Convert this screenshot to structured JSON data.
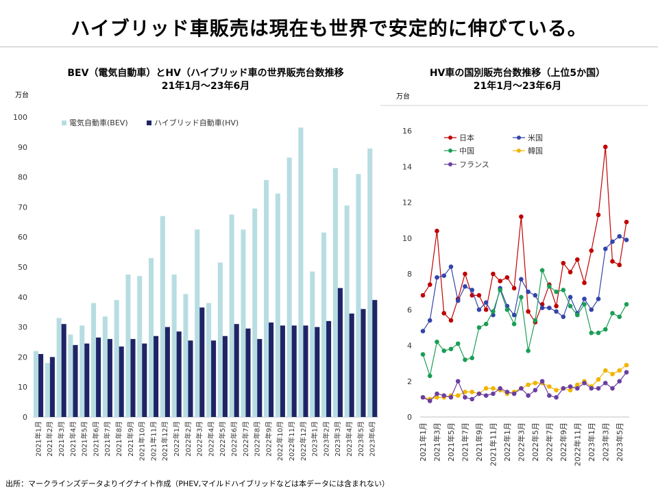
{
  "page": {
    "title": "ハイブリッド車販売は現在も世界で安定的に伸びている。",
    "source": "出所：マークラインズデータよりイグナイト作成（PHEV,マイルドハイブリッドなどは本データには含まれない）"
  },
  "chart_data": [
    {
      "type": "bar",
      "title": "BEV（電気自動車）とHV（ハイブリッド車の世界販売台数推移",
      "subtitle": "21年1月～23年6月",
      "unit": "万台",
      "ylim": [
        0,
        100
      ],
      "yticks": [
        0,
        10,
        20,
        30,
        40,
        50,
        60,
        70,
        80,
        90,
        100
      ],
      "categories": [
        "2021年1月",
        "2021年2月",
        "2021年3月",
        "2021年4月",
        "2021年5月",
        "2021年6月",
        "2021年7月",
        "2021年8月",
        "2021年9月",
        "2021年10月",
        "2021年11月",
        "2021年12月",
        "2022年1月",
        "2022年2月",
        "2022年3月",
        "2022年4月",
        "2022年5月",
        "2022年6月",
        "2022年7月",
        "2022年8月",
        "2022年9月",
        "2022年10月",
        "2022年11月",
        "2022年12月",
        "2023年1月",
        "2023年2月",
        "2023年3月",
        "2023年4月",
        "2023年5月",
        "2023年6月"
      ],
      "series": [
        {
          "name": "電気自動車(BEV)",
          "color": "#b7dde2",
          "values": [
            22,
            18,
            33,
            27.5,
            30.5,
            38,
            33.5,
            39,
            47.5,
            47,
            53,
            67,
            47.5,
            41,
            62.5,
            38,
            51.5,
            67.5,
            62.5,
            69.5,
            79,
            74.5,
            86.5,
            96.5,
            48.5,
            61.5,
            83,
            70.5,
            81,
            89.5
          ]
        },
        {
          "name": "ハイブリッド自動車(HV)",
          "color": "#1f2466",
          "values": [
            21,
            20,
            31,
            24,
            24.5,
            26.5,
            26,
            23.5,
            26,
            24.5,
            27,
            30,
            28.5,
            25.5,
            36.5,
            25.5,
            27,
            31,
            29.5,
            26,
            31.5,
            30.5,
            30.5,
            30.5,
            30,
            32,
            43,
            34.5,
            36,
            39
          ]
        }
      ]
    },
    {
      "type": "line",
      "title": "HV車の国別販売台数推移（上位5か国）",
      "subtitle": "21年1月～23年6月",
      "unit": "万台",
      "ylim": [
        0,
        16
      ],
      "yticks": [
        0,
        2,
        4,
        6,
        8,
        10,
        12,
        14,
        16
      ],
      "categories": [
        "2021年1月",
        "2021年2月",
        "2021年3月",
        "2021年4月",
        "2021年5月",
        "2021年6月",
        "2021年7月",
        "2021年8月",
        "2021年9月",
        "2021年10月",
        "2021年11月",
        "2021年12月",
        "2022年1月",
        "2022年2月",
        "2022年3月",
        "2022年4月",
        "2022年5月",
        "2022年6月",
        "2022年7月",
        "2022年8月",
        "2022年9月",
        "2022年10月",
        "2022年11月",
        "2022年12月",
        "2023年1月",
        "2023年2月",
        "2023年3月",
        "2023年4月",
        "2023年5月",
        "2023年6月"
      ],
      "xtick_labels": [
        "2021年1月",
        "2021年3月",
        "2021年5月",
        "2021年7月",
        "2021年9月",
        "2021年11月",
        "2022年1月",
        "2022年3月",
        "2022年5月",
        "2022年7月",
        "2022年9月",
        "2022年11月",
        "2023年1月",
        "2023年3月",
        "2023年5月"
      ],
      "series": [
        {
          "name": "日本",
          "color": "#c00000",
          "values": [
            6.8,
            7.4,
            10.4,
            5.8,
            5.4,
            6.6,
            8.0,
            6.8,
            6.8,
            6.0,
            8.0,
            7.6,
            7.8,
            7.2,
            11.2,
            5.9,
            5.3,
            6.3,
            7.4,
            6.2,
            8.6,
            8.1,
            8.8,
            7.5,
            9.3,
            11.3,
            15.1,
            8.7,
            8.5,
            10.9
          ]
        },
        {
          "name": "米国",
          "color": "#3344aa",
          "values": [
            4.8,
            5.4,
            7.8,
            7.9,
            8.4,
            6.5,
            7.3,
            7.1,
            6.0,
            6.4,
            5.7,
            7.2,
            6.2,
            5.7,
            7.7,
            7.0,
            6.8,
            6.1,
            6.1,
            5.9,
            5.6,
            6.7,
            5.8,
            6.6,
            6.0,
            6.6,
            9.4,
            9.8,
            10.1,
            9.9
          ]
        },
        {
          "name": "中国",
          "color": "#1a9e55",
          "values": [
            3.5,
            2.3,
            4.2,
            3.7,
            3.8,
            4.1,
            3.2,
            3.3,
            5.0,
            5.2,
            5.9,
            7.1,
            6.0,
            5.2,
            6.7,
            3.7,
            5.4,
            8.2,
            7.3,
            7.0,
            7.1,
            6.2,
            5.7,
            6.3,
            4.7,
            4.7,
            4.9,
            5.8,
            5.6,
            6.3
          ]
        },
        {
          "name": "韓国",
          "color": "#f2b400",
          "values": [
            1.1,
            1.0,
            1.1,
            1.1,
            1.2,
            1.2,
            1.4,
            1.4,
            1.3,
            1.6,
            1.6,
            1.5,
            1.3,
            1.4,
            1.6,
            1.8,
            1.9,
            1.9,
            1.7,
            1.5,
            1.6,
            1.5,
            1.8,
            2.0,
            1.7,
            2.1,
            2.6,
            2.4,
            2.6,
            2.9
          ]
        },
        {
          "name": "フランス",
          "color": "#6b3fa0",
          "values": [
            1.1,
            0.9,
            1.3,
            1.2,
            1.1,
            2.0,
            1.1,
            1.0,
            1.3,
            1.2,
            1.3,
            1.6,
            1.4,
            1.3,
            1.6,
            1.2,
            1.5,
            2.0,
            1.2,
            1.1,
            1.6,
            1.7,
            1.6,
            1.9,
            1.6,
            1.6,
            1.9,
            1.6,
            2.0,
            2.5
          ]
        }
      ]
    }
  ]
}
